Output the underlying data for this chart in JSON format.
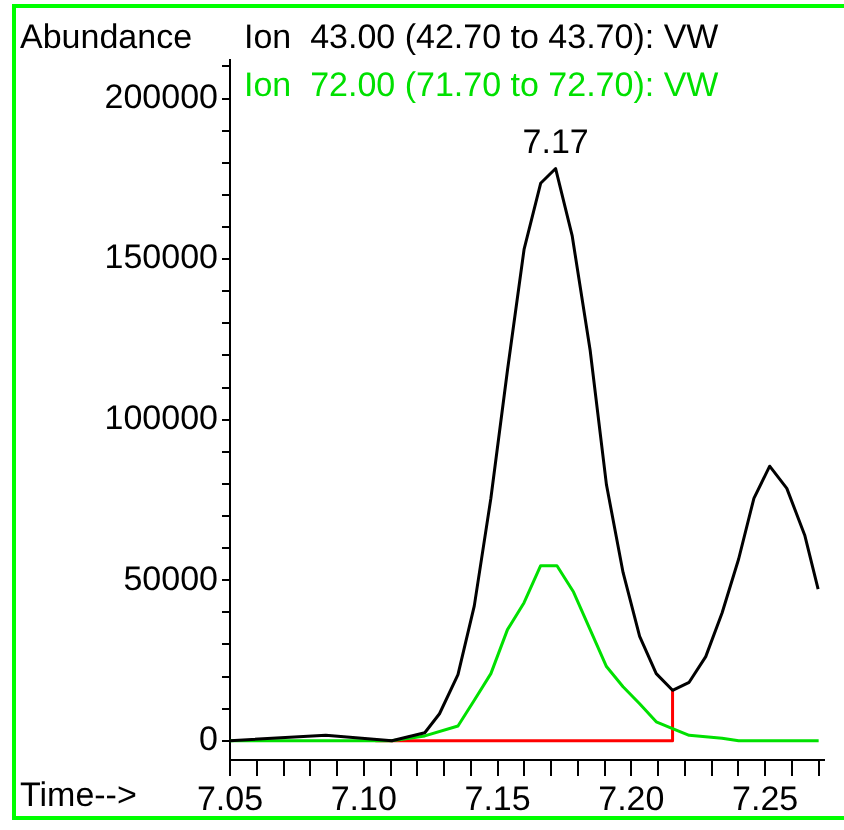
{
  "chart_data": {
    "type": "line",
    "ylabel": "Abundance",
    "xlabel": "Time-->",
    "legend": "top left",
    "grid": false,
    "marker": "none",
    "line_style": "solid",
    "xlim": [
      7.05,
      7.272
    ],
    "ylim": [
      -6000,
      212000
    ],
    "xticks": [
      7.05,
      {
        "value": 7.06,
        "label": null
      },
      {
        "value": 7.07,
        "label": null
      },
      {
        "value": 7.08,
        "label": null
      },
      {
        "value": 7.09,
        "label": null
      },
      {
        "value": 7.1,
        "label": "7.10"
      },
      {
        "value": 7.11,
        "label": null
      },
      {
        "value": 7.12,
        "label": null
      },
      {
        "value": 7.13,
        "label": null
      },
      {
        "value": 7.14,
        "label": null
      },
      7.15,
      {
        "value": 7.16,
        "label": null
      },
      {
        "value": 7.17,
        "label": null
      },
      {
        "value": 7.18,
        "label": null
      },
      {
        "value": 7.19,
        "label": null
      },
      {
        "value": 7.2,
        "label": "7.20"
      },
      {
        "value": 7.21,
        "label": null
      },
      {
        "value": 7.22,
        "label": null
      },
      {
        "value": 7.23,
        "label": null
      },
      {
        "value": 7.24,
        "label": null
      },
      7.25,
      {
        "value": 7.26,
        "label": null
      },
      {
        "value": 7.27,
        "label": null
      }
    ],
    "yticks": [
      0,
      {
        "value": 10000,
        "label": null
      },
      {
        "value": 20000,
        "label": null
      },
      {
        "value": 30000,
        "label": null
      },
      {
        "value": 40000,
        "label": null
      },
      50000,
      {
        "value": 60000,
        "label": null
      },
      {
        "value": 70000,
        "label": null
      },
      {
        "value": 80000,
        "label": null
      },
      {
        "value": 90000,
        "label": null
      },
      100000,
      {
        "value": 110000,
        "label": null
      },
      {
        "value": 120000,
        "label": null
      },
      {
        "value": 130000,
        "label": null
      },
      {
        "value": 140000,
        "label": null
      },
      150000,
      {
        "value": 160000,
        "label": null
      },
      {
        "value": 170000,
        "label": null
      },
      {
        "value": 180000,
        "label": null
      },
      {
        "value": 190000,
        "label": null
      },
      200000,
      {
        "value": 210000,
        "label": null
      }
    ],
    "annotations": [
      {
        "text": "7.17",
        "x": 7.1717,
        "y": 178200
      }
    ],
    "series": [
      {
        "name": "Ion  43.00 (42.70 to 43.70): VW",
        "color": "#000000",
        "x": [
          7.05,
          7.0858,
          7.1105,
          7.1228,
          7.1283,
          7.1352,
          7.1413,
          7.1475,
          7.1537,
          7.1599,
          7.1661,
          7.1717,
          7.1779,
          7.1846,
          7.1907,
          7.1969,
          7.2031,
          7.2093,
          7.2154,
          7.2216,
          7.2278,
          7.2339,
          7.2401,
          7.2458,
          7.2517,
          7.2581,
          7.2648,
          7.2698
        ],
        "values": [
          0,
          1700,
          0,
          2500,
          8400,
          20600,
          42000,
          75500,
          115400,
          153000,
          173600,
          178200,
          157200,
          121600,
          79700,
          52400,
          32500,
          20900,
          15700,
          18200,
          26200,
          39800,
          56600,
          75500,
          85500,
          78600,
          64000,
          47200
        ]
      },
      {
        "name": "Ion  72.00 (71.70 to 72.70): VW",
        "color": "#00e000",
        "x": [
          7.05,
          7.1105,
          7.1228,
          7.1352,
          7.1413,
          7.1475,
          7.1537,
          7.1599,
          7.1661,
          7.1722,
          7.1784,
          7.1846,
          7.1907,
          7.1969,
          7.2031,
          7.2093,
          7.2154,
          7.2216,
          7.2339,
          7.2401,
          7.27
        ],
        "values": [
          0,
          0,
          1500,
          4600,
          12600,
          20900,
          34600,
          43000,
          54500,
          54500,
          46300,
          34600,
          23100,
          16800,
          11500,
          5900,
          3800,
          1700,
          800,
          0,
          0
        ]
      },
      {
        "type": "line",
        "color": "#ff0000",
        "x": [
          7.1043,
          7.2154,
          7.2154
        ],
        "values": [
          0,
          0,
          15700
        ]
      }
    ]
  }
}
